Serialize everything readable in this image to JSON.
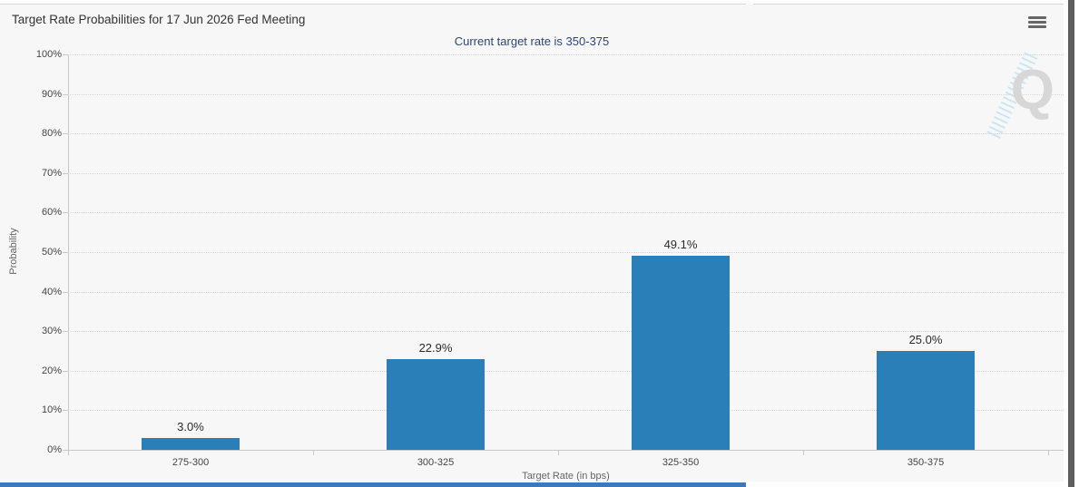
{
  "header": {
    "title": "Target Rate Probabilities for 17 Jun 2026 Fed Meeting",
    "subtitle": "Current target rate is 350-375",
    "menu_icon": "hamburger-icon"
  },
  "chart_data": {
    "type": "bar",
    "title": "Target Rate Probabilities for 17 Jun 2026 Fed Meeting",
    "subtitle": "Current target rate is 350-375",
    "categories": [
      "275-300",
      "300-325",
      "325-350",
      "350-375"
    ],
    "values": [
      3.0,
      22.9,
      49.1,
      25.0
    ],
    "data_labels": [
      "3.0%",
      "22.9%",
      "49.1%",
      "25.0%"
    ],
    "xlabel": "Target Rate (in bps)",
    "ylabel": "Probability",
    "ylim": [
      0,
      100
    ],
    "ytick_values": [
      0,
      10,
      20,
      30,
      40,
      50,
      60,
      70,
      80,
      90,
      100
    ],
    "ytick_labels": [
      "0%",
      "10%",
      "20%",
      "30%",
      "40%",
      "50%",
      "60%",
      "70%",
      "80%",
      "90%",
      "100%"
    ],
    "grid": "horizontal-dotted",
    "legend": "none",
    "bar_color": "#2b7fb8",
    "watermark_letter": "Q"
  },
  "colors": {
    "panel_bg": "#f7f7f7",
    "bar": "#2b7fb8",
    "subtitle_text": "#2d4677",
    "title_text": "#333333",
    "axis_text": "#444444",
    "axis_title_text": "#666666",
    "gridline": "#d8d8d8",
    "scrollbar_thumb": "#5e5e5e",
    "bottom_edge_strip": "#3a7abc"
  }
}
